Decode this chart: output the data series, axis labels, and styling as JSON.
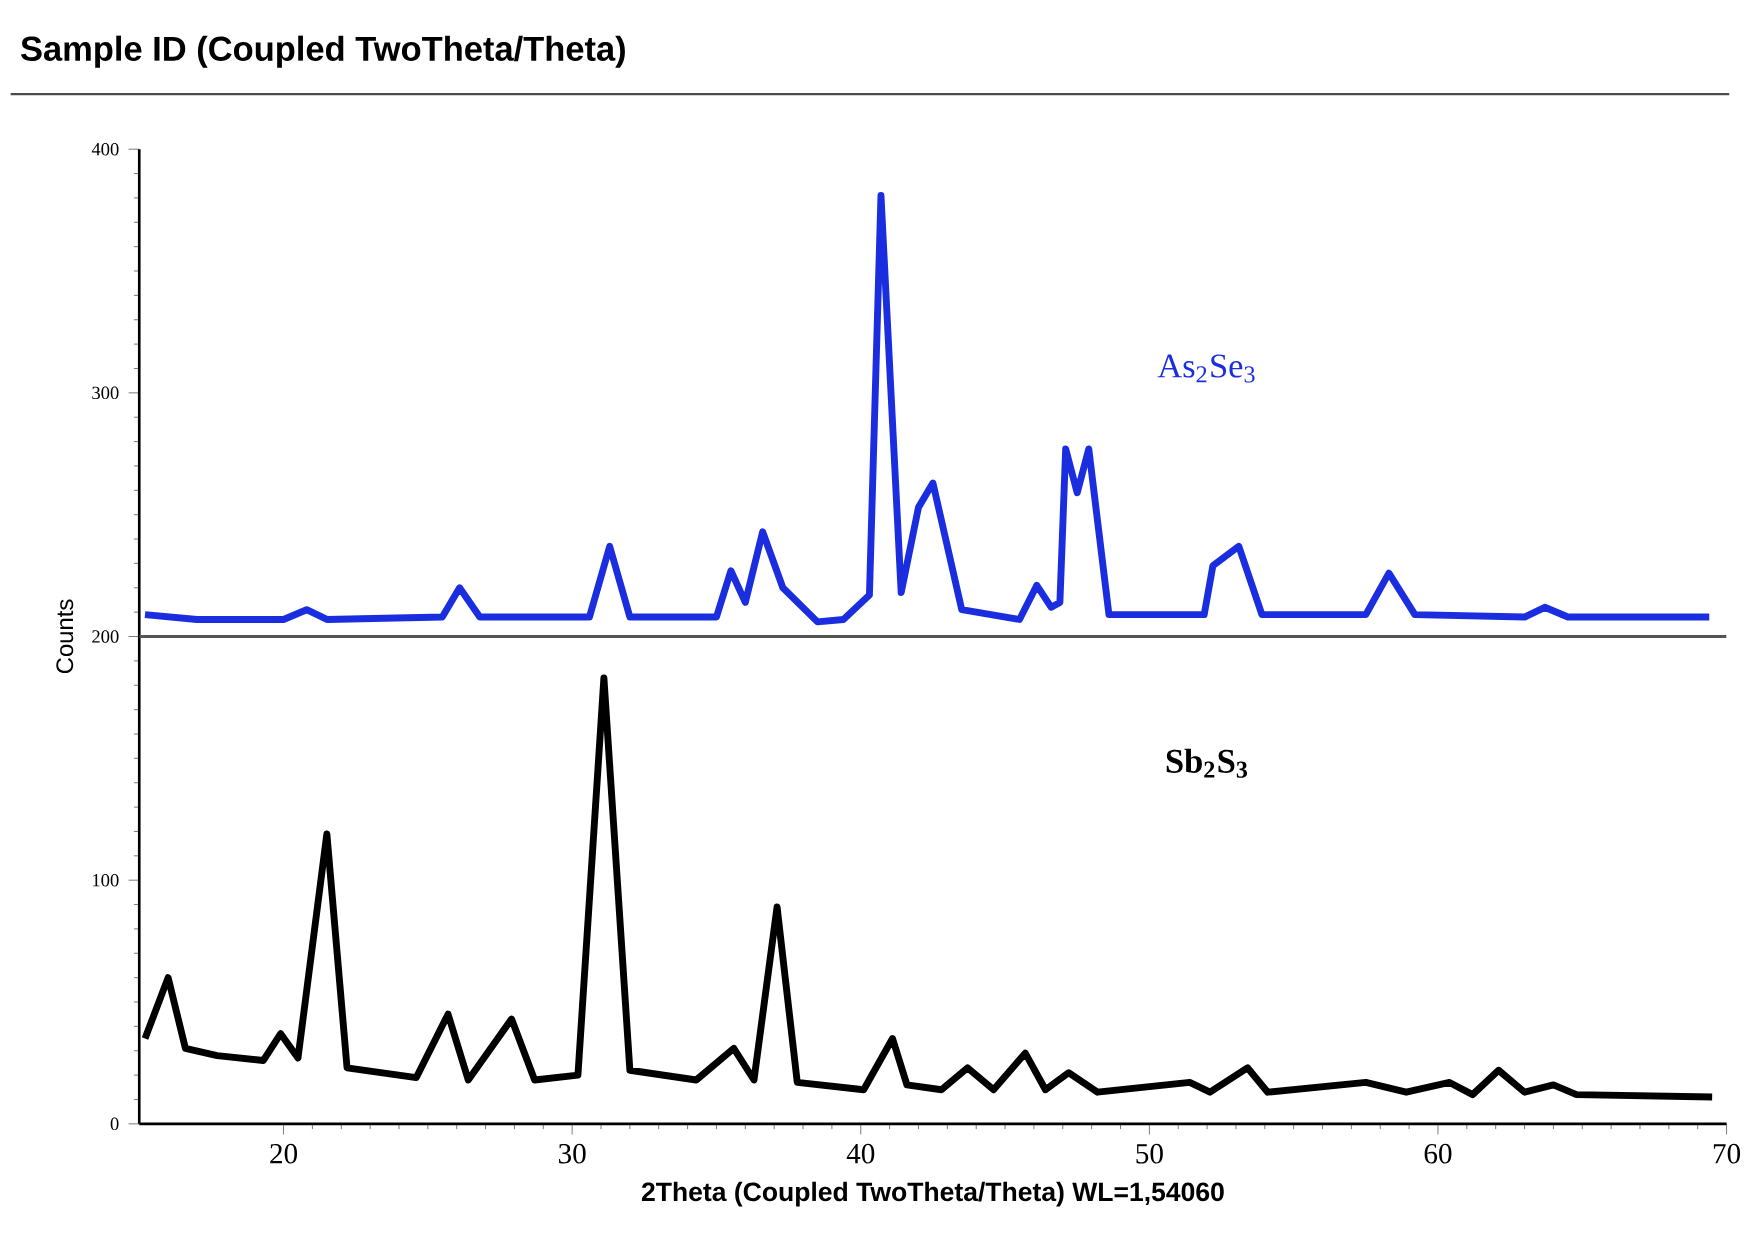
{
  "chart_data": {
    "type": "line",
    "title": "Sample ID (Coupled TwoTheta/Theta)",
    "xlabel": "2Theta (Coupled TwoTheta/Theta) WL=1,54060",
    "ylabel": "Counts",
    "series": [
      {
        "name": "As$_{2}$Se$_{3}$",
        "color": "#1a2ee0",
        "x": [
          15.2,
          17,
          20,
          20.8,
          21.5,
          25.5,
          26.1,
          26.8,
          30.6,
          31.3,
          32,
          35,
          35.5,
          36.0,
          36.6,
          37.3,
          38.5,
          39.4,
          40.3,
          40.7,
          41.4,
          42.0,
          42.5,
          43.5,
          45.5,
          46.1,
          46.6,
          46.9,
          47.1,
          47.5,
          47.9,
          48.6,
          51.9,
          52.2,
          53.1,
          53.9,
          57.5,
          58.3,
          59.2,
          63.0,
          63.7,
          64.5,
          69.4
        ],
        "values": [
          209,
          207,
          207,
          211,
          207,
          208,
          220,
          208,
          208,
          237,
          208,
          208,
          227,
          214,
          243,
          220,
          206,
          207,
          217,
          381,
          218,
          253,
          263,
          211,
          207,
          221,
          212,
          214,
          277,
          259,
          277,
          209,
          209,
          229,
          237,
          209,
          209,
          226,
          209,
          208,
          212,
          208,
          208
        ]
      },
      {
        "name": "**Sb$_{2}$S$_{3}$**",
        "color": "#000000",
        "x": [
          15.2,
          16.0,
          16.6,
          17.7,
          19.3,
          19.9,
          20.5,
          21.5,
          22.2,
          24.6,
          25.7,
          26.4,
          27.9,
          28.7,
          30.2,
          31.1,
          32.0,
          34.3,
          35.6,
          36.3,
          37.1,
          37.8,
          40.1,
          41.1,
          41.6,
          42.8,
          43.7,
          44.6,
          45.7,
          46.4,
          47.2,
          48.2,
          51.4,
          52.1,
          53.4,
          54.1,
          57.5,
          58.9,
          60.4,
          61.2,
          62.1,
          63.0,
          64.0,
          64.8,
          69.5
        ],
        "values": [
          35,
          60,
          31,
          28,
          26,
          37,
          27,
          119,
          23,
          19,
          45,
          18,
          43,
          18,
          20,
          183,
          22,
          18,
          31,
          18,
          89,
          17,
          14,
          35,
          16,
          14,
          23,
          14,
          29,
          14,
          21,
          13,
          17,
          13,
          23,
          13,
          17,
          13,
          17,
          12,
          22,
          13,
          16,
          12,
          11
        ]
      }
    ],
    "xlim": [
      15,
      70
    ],
    "ylim": [
      0,
      400
    ],
    "xticks": [
      20,
      30,
      40,
      50,
      60,
      70
    ],
    "yticks": [
      0,
      100,
      200,
      300,
      400
    ],
    "ref_lines": [
      {
        "axis": "y",
        "value": 200,
        "color": "#555555"
      }
    ],
    "grid": false,
    "legend": false
  }
}
